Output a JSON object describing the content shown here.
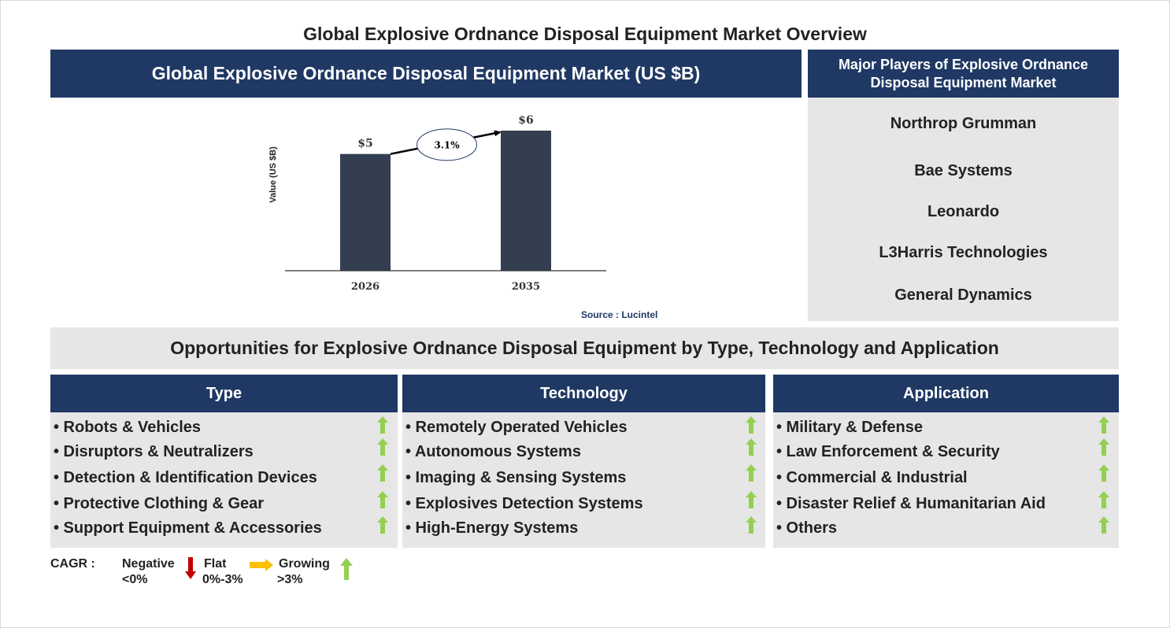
{
  "page_title": "Global Explosive Ordnance Disposal Equipment Market Overview",
  "chart_header": "Global Explosive Ordnance Disposal Equipment Market (US $B)",
  "chart_data": {
    "type": "bar",
    "categories": [
      "2026",
      "2035"
    ],
    "values": [
      5,
      6
    ],
    "value_labels": [
      "$5",
      "$6"
    ],
    "ylabel": "Value (US $B)",
    "cagr_label": "3.1%",
    "bar_color": "#333f50",
    "source": "Source : Lucintel"
  },
  "players": {
    "header": "Major Players of Explosive Ordnance Disposal Equipment Market",
    "items": [
      "Northrop Grumman",
      "Bae Systems",
      "Leonardo",
      "L3Harris Technologies",
      "General Dynamics"
    ]
  },
  "opportunities_title": "Opportunities for Explosive Ordnance Disposal Equipment by Type, Technology and Application",
  "segments": [
    {
      "title": "Type",
      "items": [
        {
          "label": "• Robots & Vehicles",
          "trend": "growing"
        },
        {
          "label": "• Disruptors & Neutralizers",
          "trend": "growing"
        },
        {
          "label": "• Detection & Identification Devices",
          "trend": "growing"
        },
        {
          "label": "• Protective Clothing & Gear",
          "trend": "growing"
        },
        {
          "label": "• Support Equipment & Accessories",
          "trend": "growing"
        }
      ]
    },
    {
      "title": "Technology",
      "items": [
        {
          "label": "• Remotely Operated Vehicles",
          "trend": "growing"
        },
        {
          "label": "• Autonomous Systems",
          "trend": "growing"
        },
        {
          "label": "• Imaging & Sensing Systems",
          "trend": "growing"
        },
        {
          "label": "• Explosives Detection Systems",
          "trend": "growing"
        },
        {
          "label": "• High-Energy Systems",
          "trend": "growing"
        }
      ]
    },
    {
      "title": "Application",
      "items": [
        {
          "label": "• Military & Defense",
          "trend": "growing"
        },
        {
          "label": "• Law Enforcement & Security",
          "trend": "growing"
        },
        {
          "label": "• Commercial & Industrial",
          "trend": "growing"
        },
        {
          "label": "• Disaster Relief & Humanitarian Aid",
          "trend": "growing"
        },
        {
          "label": "• Others",
          "trend": "growing"
        }
      ]
    }
  ],
  "legend": {
    "cagr_label": "CAGR :",
    "negative_label": "Negative",
    "negative_range": "<0%",
    "flat_label": "Flat",
    "flat_range": "0%-3%",
    "growing_label": "Growing",
    "growing_range": ">3%"
  },
  "colors": {
    "navy": "#1f3864",
    "panel_grey": "#e6e6e6",
    "growing_arrow": "#92d050",
    "negative_arrow": "#c00000",
    "flat_arrow": "#ffc000"
  }
}
